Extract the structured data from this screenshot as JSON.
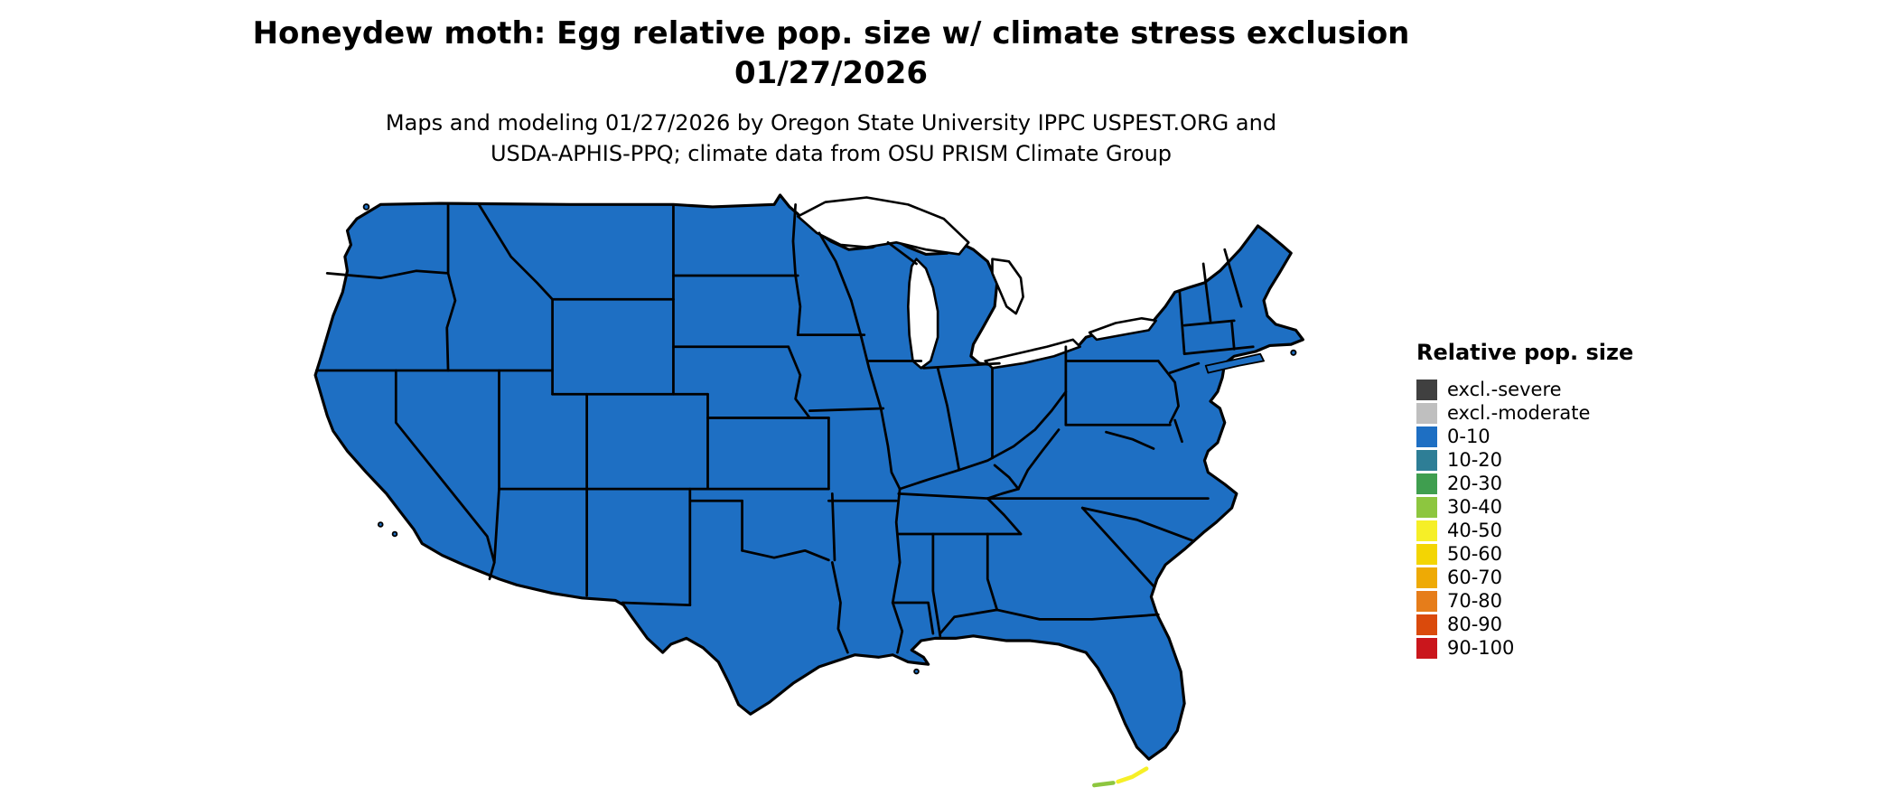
{
  "header": {
    "title_line1": "Honeydew moth: Egg relative pop. size w/ climate stress exclusion",
    "title_line2": "01/27/2026",
    "subtitle_line1": "Maps and modeling 01/27/2026 by Oregon State University IPPC USPEST.ORG and",
    "subtitle_line2": "USDA-APHIS-PPQ; climate data from OSU PRISM Climate Group"
  },
  "map": {
    "land_fill_color": "#1e6fc3",
    "border_color": "#000000",
    "water_color": "#ffffff",
    "dominant_category": "0-10"
  },
  "legend": {
    "title": "Relative pop. size",
    "items": [
      {
        "label": "excl.-severe",
        "color": "#404040"
      },
      {
        "label": "excl.-moderate",
        "color": "#bfbfbf"
      },
      {
        "label": "0-10",
        "color": "#1e6fc3"
      },
      {
        "label": "10-20",
        "color": "#2e7e96"
      },
      {
        "label": "20-30",
        "color": "#3f9e4f"
      },
      {
        "label": "30-40",
        "color": "#8dc63f"
      },
      {
        "label": "40-50",
        "color": "#f6ef27"
      },
      {
        "label": "50-60",
        "color": "#f3d503"
      },
      {
        "label": "60-70",
        "color": "#eeaa05"
      },
      {
        "label": "70-80",
        "color": "#e67d1a"
      },
      {
        "label": "80-90",
        "color": "#da4a0c"
      },
      {
        "label": "90-100",
        "color": "#ca161c"
      }
    ]
  }
}
